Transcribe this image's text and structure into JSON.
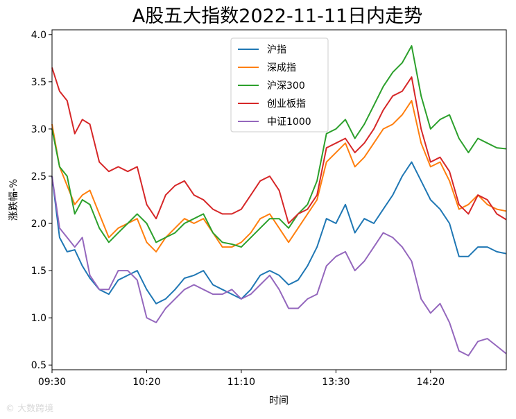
{
  "chart_data": {
    "type": "line",
    "title": "A股五大指数2022-11-11日内走势",
    "xlabel": "时间",
    "ylabel": "涨跌幅-%",
    "ylim": [
      0.45,
      4.05
    ],
    "yticks": [
      "0.5",
      "1.0",
      "1.5",
      "2.0",
      "2.5",
      "3.0",
      "3.5",
      "4.0"
    ],
    "xticks": [
      "09:30",
      "10:20",
      "11:10",
      "13:30",
      "14:20"
    ],
    "grid": false,
    "legend_position": "upper center",
    "x_minutes_total": 240,
    "xtick_positions": [
      0,
      50,
      100,
      150,
      200
    ],
    "series": [
      {
        "name": "沪指",
        "color": "#1f77b4",
        "x": [
          0,
          4,
          8,
          12,
          16,
          20,
          25,
          30,
          35,
          40,
          45,
          50,
          55,
          60,
          65,
          70,
          75,
          80,
          85,
          90,
          95,
          100,
          105,
          110,
          115,
          120,
          125,
          130,
          135,
          140,
          145,
          150,
          155,
          160,
          165,
          170,
          175,
          180,
          185,
          190,
          195,
          200,
          205,
          210,
          215,
          220,
          225,
          230,
          235,
          240
        ],
        "values": [
          2.5,
          1.85,
          1.7,
          1.72,
          1.55,
          1.42,
          1.3,
          1.25,
          1.4,
          1.45,
          1.5,
          1.3,
          1.15,
          1.2,
          1.3,
          1.42,
          1.45,
          1.5,
          1.35,
          1.3,
          1.25,
          1.2,
          1.3,
          1.45,
          1.5,
          1.45,
          1.35,
          1.4,
          1.55,
          1.75,
          2.05,
          2.0,
          2.2,
          1.9,
          2.05,
          2.0,
          2.15,
          2.3,
          2.5,
          2.65,
          2.45,
          2.25,
          2.15,
          2.0,
          1.65,
          1.65,
          1.75,
          1.75,
          1.7,
          1.68
        ]
      },
      {
        "name": "深成指",
        "color": "#ff7f0e",
        "x": [
          0,
          4,
          8,
          12,
          16,
          20,
          25,
          30,
          35,
          40,
          45,
          50,
          55,
          60,
          65,
          70,
          75,
          80,
          85,
          90,
          95,
          100,
          105,
          110,
          115,
          120,
          125,
          130,
          135,
          140,
          145,
          150,
          155,
          160,
          165,
          170,
          175,
          180,
          185,
          190,
          195,
          200,
          205,
          210,
          215,
          220,
          225,
          230,
          235,
          240
        ],
        "values": [
          3.05,
          2.6,
          2.4,
          2.2,
          2.3,
          2.35,
          2.1,
          1.85,
          1.95,
          2.0,
          2.05,
          1.8,
          1.7,
          1.85,
          1.95,
          2.05,
          2.0,
          2.05,
          1.9,
          1.75,
          1.75,
          1.8,
          1.9,
          2.05,
          2.1,
          1.95,
          1.8,
          1.95,
          2.1,
          2.25,
          2.65,
          2.75,
          2.85,
          2.6,
          2.7,
          2.85,
          3.0,
          3.05,
          3.15,
          3.3,
          2.85,
          2.6,
          2.65,
          2.45,
          2.15,
          2.2,
          2.3,
          2.2,
          2.15,
          2.13
        ]
      },
      {
        "name": "沪深300",
        "color": "#2ca02c",
        "x": [
          0,
          4,
          8,
          12,
          16,
          20,
          25,
          30,
          35,
          40,
          45,
          50,
          55,
          60,
          65,
          70,
          75,
          80,
          85,
          90,
          95,
          100,
          105,
          110,
          115,
          120,
          125,
          130,
          135,
          140,
          145,
          150,
          155,
          160,
          165,
          170,
          175,
          180,
          185,
          190,
          195,
          200,
          205,
          210,
          215,
          220,
          225,
          230,
          235,
          240
        ],
        "values": [
          3.0,
          2.6,
          2.5,
          2.1,
          2.25,
          2.2,
          1.95,
          1.8,
          1.9,
          2.0,
          2.1,
          2.0,
          1.8,
          1.85,
          1.9,
          2.0,
          2.05,
          2.1,
          1.9,
          1.8,
          1.78,
          1.75,
          1.85,
          1.95,
          2.05,
          2.05,
          1.95,
          2.1,
          2.2,
          2.45,
          2.95,
          3.0,
          3.1,
          2.9,
          3.05,
          3.25,
          3.45,
          3.6,
          3.7,
          3.88,
          3.35,
          3.0,
          3.1,
          3.15,
          2.9,
          2.75,
          2.9,
          2.85,
          2.8,
          2.79
        ]
      },
      {
        "name": "创业板指",
        "color": "#d62728",
        "x": [
          0,
          4,
          8,
          12,
          16,
          20,
          25,
          30,
          35,
          40,
          45,
          50,
          55,
          60,
          65,
          70,
          75,
          80,
          85,
          90,
          95,
          100,
          105,
          110,
          115,
          120,
          125,
          130,
          135,
          140,
          145,
          150,
          155,
          160,
          165,
          170,
          175,
          180,
          185,
          190,
          195,
          200,
          205,
          210,
          215,
          220,
          225,
          230,
          235,
          240
        ],
        "values": [
          3.65,
          3.4,
          3.3,
          2.95,
          3.1,
          3.05,
          2.65,
          2.55,
          2.6,
          2.55,
          2.6,
          2.2,
          2.05,
          2.3,
          2.4,
          2.45,
          2.3,
          2.25,
          2.15,
          2.1,
          2.1,
          2.15,
          2.3,
          2.45,
          2.5,
          2.35,
          2.0,
          2.1,
          2.15,
          2.3,
          2.8,
          2.85,
          2.9,
          2.75,
          2.85,
          3.0,
          3.2,
          3.35,
          3.4,
          3.55,
          3.0,
          2.65,
          2.7,
          2.55,
          2.2,
          2.1,
          2.3,
          2.25,
          2.1,
          2.04
        ]
      },
      {
        "name": "中证1000",
        "color": "#9467bd",
        "x": [
          0,
          4,
          8,
          12,
          16,
          20,
          25,
          30,
          35,
          40,
          45,
          50,
          55,
          60,
          65,
          70,
          75,
          80,
          85,
          90,
          95,
          100,
          105,
          110,
          115,
          120,
          125,
          130,
          135,
          140,
          145,
          150,
          155,
          160,
          165,
          170,
          175,
          180,
          185,
          190,
          195,
          200,
          205,
          210,
          215,
          220,
          225,
          230,
          235,
          240
        ],
        "values": [
          2.5,
          1.95,
          1.85,
          1.75,
          1.85,
          1.45,
          1.3,
          1.3,
          1.5,
          1.5,
          1.4,
          1.0,
          0.95,
          1.1,
          1.2,
          1.3,
          1.35,
          1.3,
          1.25,
          1.25,
          1.3,
          1.2,
          1.25,
          1.35,
          1.45,
          1.3,
          1.1,
          1.1,
          1.2,
          1.25,
          1.55,
          1.65,
          1.7,
          1.5,
          1.6,
          1.75,
          1.9,
          1.85,
          1.75,
          1.6,
          1.2,
          1.05,
          1.15,
          0.95,
          0.65,
          0.6,
          0.75,
          0.78,
          0.7,
          0.62
        ]
      }
    ]
  }
}
